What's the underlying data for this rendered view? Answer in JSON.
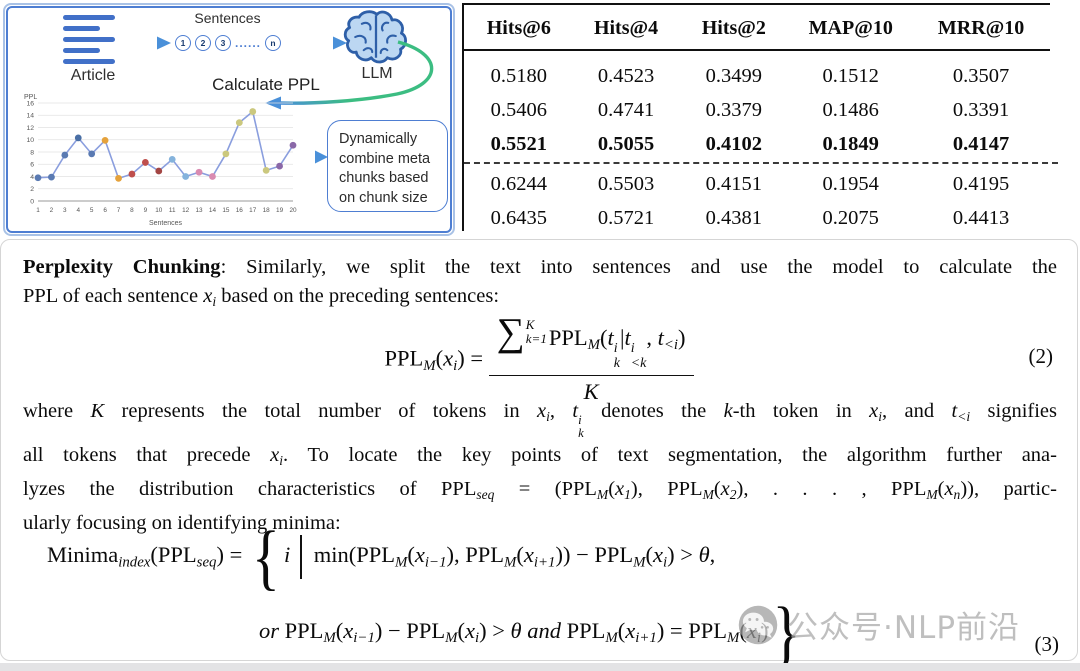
{
  "diagram": {
    "article_label": "Article",
    "sentences_label": "Sentences",
    "sentence_circles": [
      "1",
      "2",
      "3",
      "......",
      "n"
    ],
    "llm_label": "LLM",
    "calculate_ppl_label": "Calculate PPL",
    "combine_box": "Dynamically combine meta chunks based on chunk size",
    "colors": {
      "panel_border_outer": "#a9c2e6",
      "panel_border_inner": "#4e7ed2",
      "article_blue": "#4170c8",
      "arrow_teal": "#35b5a0",
      "arrow_blue": "#4a90d9",
      "brain_fill": "#bcd7f2",
      "brain_stroke": "#2e5fa8",
      "green_curve": "#3cbd82"
    }
  },
  "chart_data": {
    "type": "line",
    "title": "",
    "xlabel": "Sentences",
    "ylabel": "PPL",
    "x": [
      1,
      2,
      3,
      4,
      5,
      6,
      7,
      8,
      9,
      10,
      11,
      12,
      13,
      14,
      15,
      16,
      17,
      18,
      19,
      20
    ],
    "y": [
      3.8,
      3.9,
      7.5,
      10.3,
      7.7,
      9.9,
      3.7,
      4.4,
      6.3,
      4.9,
      6.8,
      4.0,
      4.7,
      4.0,
      7.7,
      12.8,
      14.6,
      5.0,
      5.7,
      9.1
    ],
    "point_colors": [
      "#5a7ab2",
      "#5a7ab2",
      "#5a7ab2",
      "#4a6fa5",
      "#5a7ab2",
      "#e5a23c",
      "#e5a23c",
      "#bf4f4c",
      "#bf4f4c",
      "#a34543",
      "#85b3dc",
      "#85b3dc",
      "#d98bb1",
      "#d98bb1",
      "#cbc87e",
      "#cbc87e",
      "#cbc87e",
      "#cbc87e",
      "#8a68a8",
      "#8a68a8"
    ],
    "line_color": "#8a9ede",
    "ylim": [
      0,
      16
    ],
    "yticks": [
      0,
      2,
      4,
      6,
      8,
      10,
      12,
      14,
      16
    ],
    "grid": true,
    "legend": false
  },
  "table": {
    "headers": [
      "Hits@6",
      "Hits@4",
      "Hits@2",
      "MAP@10",
      "MRR@10"
    ],
    "rows": [
      {
        "values": [
          "0.5180",
          "0.4523",
          "0.3499",
          "0.1512",
          "0.3507"
        ],
        "bold": false
      },
      {
        "values": [
          "0.5406",
          "0.4741",
          "0.3379",
          "0.1486",
          "0.3391"
        ],
        "bold": false
      },
      {
        "values": [
          "0.5521",
          "0.5055",
          "0.4102",
          "0.1849",
          "0.4147"
        ],
        "bold": true
      },
      {
        "values": [
          "0.6244",
          "0.5503",
          "0.4151",
          "0.1954",
          "0.4195"
        ],
        "bold": false
      },
      {
        "values": [
          "0.6435",
          "0.5721",
          "0.4381",
          "0.2075",
          "0.4413"
        ],
        "bold": false
      }
    ],
    "dashed_divider_after_row": 3
  },
  "content": {
    "para1": {
      "lines": [
        [
          {
            "b": "Perplexity Chunking"
          },
          {
            "t": ": Similarly, we split the text into sentences and use the model to calculate the"
          }
        ],
        [
          {
            "t": "PPL of each sentence "
          },
          {
            "i": "x"
          },
          {
            "sub": "i"
          },
          {
            "t": " based on the preceding sentences:"
          }
        ]
      ]
    },
    "eq2": {
      "tokens": [
        {
          "t": "PPL"
        },
        {
          "sub": "M"
        },
        {
          "t": "("
        },
        {
          "i": "x"
        },
        {
          "sub": "i"
        },
        {
          "t": ") = "
        },
        {
          "frac": {
            "num": [
              {
                "sum": {
                  "sup": "K",
                  "sub": "k=1"
                }
              },
              {
                "t": "PPL"
              },
              {
                "sub": "M"
              },
              {
                "t": "("
              },
              {
                "i": "t"
              },
              {
                "stack": {
                  "sup": "i",
                  "sub": "k"
                }
              },
              {
                "t": "|"
              },
              {
                "i": "t"
              },
              {
                "stack": {
                  "sup": "i",
                  "sub": "<k"
                }
              },
              {
                "t": ", "
              },
              {
                "i": "t"
              },
              {
                "sub": "<i"
              },
              {
                "t": ")"
              }
            ],
            "den": [
              {
                "i": "K"
              }
            ]
          }
        }
      ],
      "number": "(2)"
    },
    "para2": {
      "lines": [
        [
          {
            "t": "where "
          },
          {
            "i": "K"
          },
          {
            "t": " represents the total number of tokens in "
          },
          {
            "i": "x"
          },
          {
            "sub": "i"
          },
          {
            "t": ", "
          },
          {
            "i": "t"
          },
          {
            "stack": {
              "sup": "i",
              "sub": "k"
            }
          },
          {
            "t": " denotes the "
          },
          {
            "i": "k"
          },
          {
            "t": "-th token in "
          },
          {
            "i": "x"
          },
          {
            "sub": "i"
          },
          {
            "t": ", and "
          },
          {
            "i": "t"
          },
          {
            "sub": "<i"
          },
          {
            "t": " signifies"
          }
        ],
        [
          {
            "t": "all tokens that precede "
          },
          {
            "i": "x"
          },
          {
            "sub": "i"
          },
          {
            "t": ". To locate the key points of text segmentation, the algorithm further ana-"
          }
        ],
        [
          {
            "t": "lyzes the distribution characteristics of PPL"
          },
          {
            "sub": "seq"
          },
          {
            "t": " = (PPL"
          },
          {
            "sub": "M"
          },
          {
            "t": "("
          },
          {
            "i": "x"
          },
          {
            "sub": "1"
          },
          {
            "t": "), PPL"
          },
          {
            "sub": "M"
          },
          {
            "t": "("
          },
          {
            "i": "x"
          },
          {
            "sub": "2"
          },
          {
            "t": "), . . . , PPL"
          },
          {
            "sub": "M"
          },
          {
            "t": "("
          },
          {
            "i": "x"
          },
          {
            "sub": "n"
          },
          {
            "t": ")), partic-"
          }
        ],
        [
          {
            "t": "ularly focusing on identifying minima:"
          }
        ]
      ]
    },
    "eq3": {
      "line1": [
        {
          "t": "Minima"
        },
        {
          "sub": "index"
        },
        {
          "t": "(PPL"
        },
        {
          "sub": "seq"
        },
        {
          "t": ") = "
        },
        {
          "brace": "{"
        },
        {
          "i": "i"
        },
        {
          "vbar": true
        },
        {
          "t": "min(PPL"
        },
        {
          "sub": "M"
        },
        {
          "t": "("
        },
        {
          "i": "x"
        },
        {
          "sub": "i−1"
        },
        {
          "t": "), PPL"
        },
        {
          "sub": "M"
        },
        {
          "t": "("
        },
        {
          "i": "x"
        },
        {
          "sub": "i+1"
        },
        {
          "t": ")) − PPL"
        },
        {
          "sub": "M"
        },
        {
          "t": "("
        },
        {
          "i": "x"
        },
        {
          "sub": "i"
        },
        {
          "t": ") > "
        },
        {
          "i": "θ"
        },
        {
          "t": ","
        }
      ],
      "line2": [
        {
          "i": "or"
        },
        {
          "t": " PPL"
        },
        {
          "sub": "M"
        },
        {
          "t": "("
        },
        {
          "i": "x"
        },
        {
          "sub": "i−1"
        },
        {
          "t": ") − PPL"
        },
        {
          "sub": "M"
        },
        {
          "t": "("
        },
        {
          "i": "x"
        },
        {
          "sub": "i"
        },
        {
          "t": ") > "
        },
        {
          "i": "θ"
        },
        {
          "t": " "
        },
        {
          "i": "and"
        },
        {
          "t": " PPL"
        },
        {
          "sub": "M"
        },
        {
          "t": "("
        },
        {
          "i": "x"
        },
        {
          "sub": "i+1"
        },
        {
          "t": ") = PPL"
        },
        {
          "sub": "M"
        },
        {
          "t": "("
        },
        {
          "i": "x"
        },
        {
          "sub": "i"
        },
        {
          "t": ")"
        },
        {
          "brace": "}"
        }
      ],
      "number": "(3)"
    }
  },
  "watermark": {
    "text": "公众号·NLP前沿",
    "icon": "wechat-icon"
  }
}
